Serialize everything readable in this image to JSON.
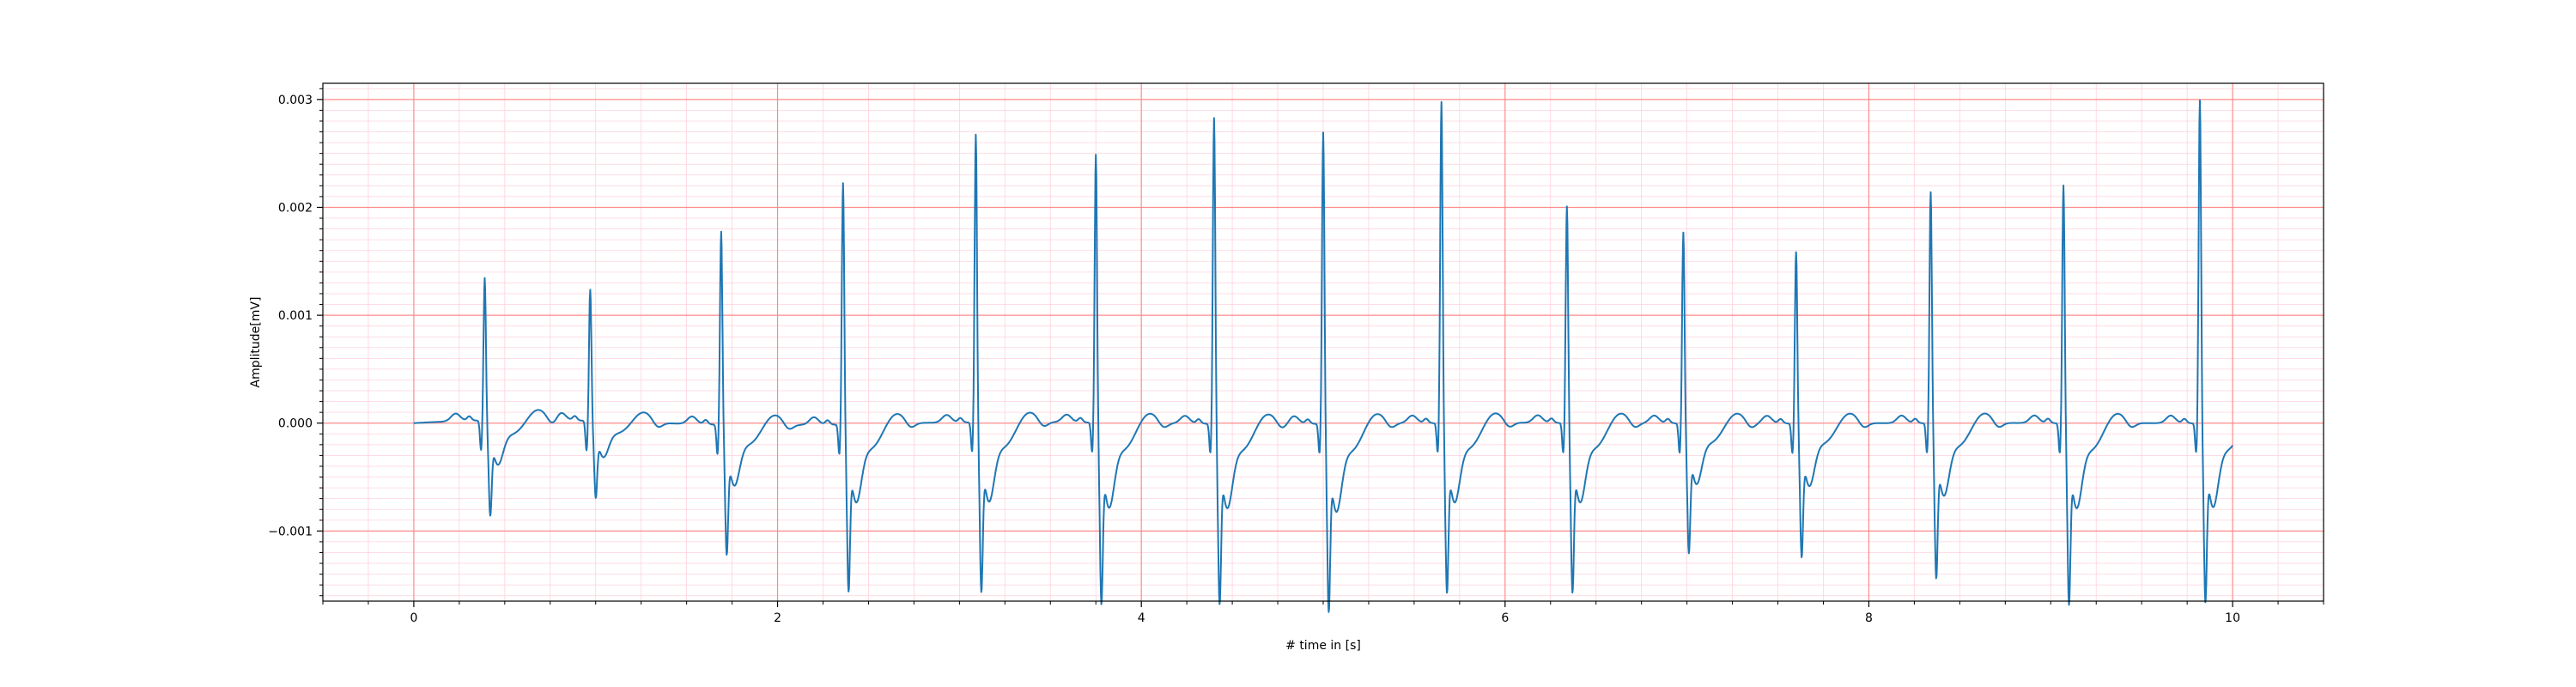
{
  "chart_data": {
    "type": "line",
    "title": "",
    "xlabel": "# time in [s]",
    "ylabel": "Amplitude[mV]",
    "xlim": [
      -0.5,
      10.5
    ],
    "ylim": [
      -0.00165,
      0.00315
    ],
    "x_ticks": [
      0,
      2,
      4,
      6,
      8,
      10
    ],
    "x_tick_labels": [
      "0",
      "2",
      "4",
      "6",
      "8",
      "10"
    ],
    "y_ticks": [
      -0.001,
      0.0,
      0.001,
      0.002,
      0.003
    ],
    "y_tick_labels": [
      "−0.001",
      "0.000",
      "0.001",
      "0.002",
      "0.003"
    ],
    "grid": {
      "major": true,
      "minor": true,
      "major_color": "#ff8a8a",
      "minor_color": "#ffd2dc"
    },
    "legend": "none",
    "colors": {
      "line": "#1f77b4",
      "major_grid": "#ff8a8a",
      "minor_grid": "#ffd2dc"
    },
    "series": [
      {
        "beats": [
          {
            "t": 0.39,
            "r": 0.00135,
            "s": -0.00072
          },
          {
            "t": 0.97,
            "r": 0.00124,
            "s": -0.00058
          },
          {
            "t": 1.69,
            "r": 0.00183,
            "s": -0.00098
          },
          {
            "t": 2.36,
            "r": 0.00229,
            "s": -0.00126
          },
          {
            "t": 3.09,
            "r": 0.00272,
            "s": -0.00128
          },
          {
            "t": 3.75,
            "r": 0.00254,
            "s": -0.00137
          },
          {
            "t": 4.4,
            "r": 0.00289,
            "s": -0.00136
          },
          {
            "t": 5.0,
            "r": 0.00276,
            "s": -0.00142
          },
          {
            "t": 5.65,
            "r": 0.00303,
            "s": -0.00128
          },
          {
            "t": 6.34,
            "r": 0.00206,
            "s": -0.00128
          },
          {
            "t": 6.98,
            "r": 0.00181,
            "s": -0.00098
          },
          {
            "t": 7.6,
            "r": 0.00163,
            "s": -0.00101
          },
          {
            "t": 8.34,
            "r": 0.00219,
            "s": -0.00117
          },
          {
            "t": 9.07,
            "r": 0.00226,
            "s": -0.00137
          },
          {
            "t": 9.82,
            "r": 0.00305,
            "s": -0.00135
          }
        ]
      }
    ]
  }
}
